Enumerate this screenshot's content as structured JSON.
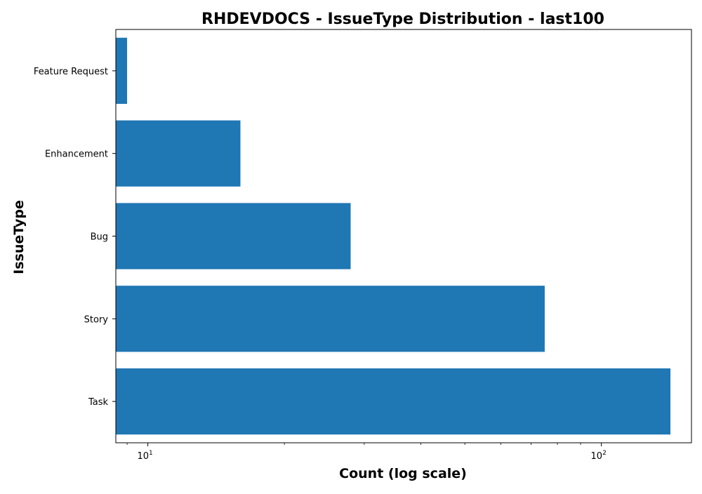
{
  "chart_data": {
    "type": "bar",
    "orientation": "horizontal",
    "title": "RHDEVDOCS - IssueType Distribution - last100",
    "xlabel": "Count (log scale)",
    "ylabel": "IssueType",
    "x_scale": "log",
    "xlim": [
      8.5,
      158
    ],
    "x_ticks": [
      {
        "value": 10,
        "base": "10",
        "exp": "1"
      },
      {
        "value": 100,
        "base": "10",
        "exp": "2"
      }
    ],
    "categories": [
      "Feature Request",
      "Enhancement",
      "Bug",
      "Story",
      "Task"
    ],
    "values": [
      9,
      16,
      28,
      75,
      142
    ],
    "grid": false,
    "legend": "none",
    "colors": {
      "bar": "#1f77b4",
      "axis": "#000000",
      "text": "#000000",
      "background": "#ffffff"
    }
  }
}
